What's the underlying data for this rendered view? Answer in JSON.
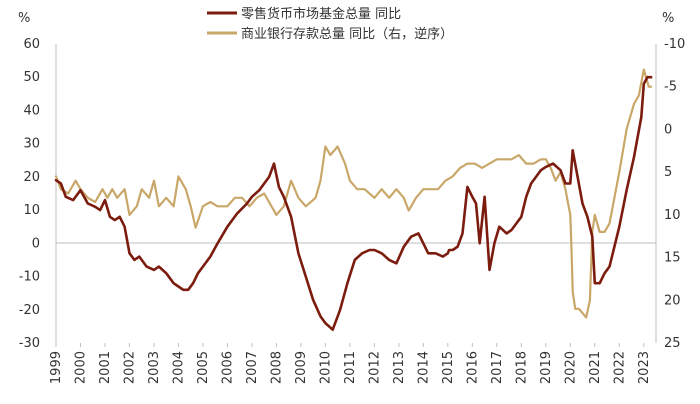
{
  "chart_data": {
    "type": "line",
    "title": "",
    "xlabel": "",
    "left_unit": "%",
    "right_unit": "%",
    "y_left_lim": [
      -30,
      60
    ],
    "y_left_ticks": [
      "60",
      "50",
      "40",
      "30",
      "20",
      "10",
      "0",
      "-10",
      "-20",
      "-30"
    ],
    "y_right_lim": [
      25,
      -10
    ],
    "y_right_reversed": true,
    "y_right_ticks": [
      "-10",
      "-5",
      "0",
      "5",
      "10",
      "15",
      "20",
      "25"
    ],
    "x_lim": [
      1999.0,
      2023.5
    ],
    "x_ticks": [
      "1999",
      "2000",
      "2001",
      "2002",
      "2003",
      "2004",
      "2005",
      "2006",
      "2007",
      "2008",
      "2009",
      "2010",
      "2011",
      "2012",
      "2013",
      "2014",
      "2015",
      "2016",
      "2017",
      "2018",
      "2019",
      "2020",
      "2021",
      "2022",
      "2023"
    ],
    "grid": false,
    "legend_position": "top-center",
    "series": [
      {
        "name": "零售货币市场基金总量 同比",
        "axis": "left",
        "color": "#7b1c0e",
        "x": [
          1999.0,
          1999.2,
          1999.4,
          1999.7,
          2000.0,
          2000.3,
          2000.6,
          2000.8,
          2001.0,
          2001.2,
          2001.4,
          2001.6,
          2001.8,
          2002.0,
          2002.2,
          2002.4,
          2002.7,
          2003.0,
          2003.2,
          2003.5,
          2003.8,
          2004.0,
          2004.2,
          2004.4,
          2004.6,
          2004.8,
          2005.0,
          2005.3,
          2005.6,
          2006.0,
          2006.4,
          2006.8,
          2007.0,
          2007.3,
          2007.5,
          2007.7,
          2007.9,
          2008.1,
          2008.3,
          2008.6,
          2008.9,
          2009.2,
          2009.5,
          2009.8,
          2010.0,
          2010.3,
          2010.6,
          2010.9,
          2011.2,
          2011.5,
          2011.8,
          2012.0,
          2012.3,
          2012.6,
          2012.9,
          2013.2,
          2013.5,
          2013.8,
          2014.0,
          2014.2,
          2014.5,
          2014.8,
          2015.0,
          2015.05,
          2015.2,
          2015.4,
          2015.6,
          2015.8,
          2016.0,
          2016.15,
          2016.3,
          2016.5,
          2016.7,
          2016.9,
          2017.1,
          2017.4,
          2017.6,
          2017.8,
          2018.0,
          2018.2,
          2018.4,
          2018.6,
          2018.8,
          2019.0,
          2019.3,
          2019.6,
          2019.8,
          2020.0,
          2020.1,
          2020.3,
          2020.5,
          2020.7,
          2020.9,
          2021.0,
          2021.2,
          2021.4,
          2021.6,
          2021.8,
          2022.0,
          2022.3,
          2022.6,
          2022.9,
          2023.0,
          2023.15,
          2023.3
        ],
        "values": [
          19,
          18,
          14,
          13,
          16,
          12,
          11,
          10,
          13,
          8,
          7,
          8,
          5,
          -3,
          -5,
          -4,
          -7,
          -8,
          -7,
          -9,
          -12,
          -13,
          -14,
          -14,
          -12,
          -9,
          -7,
          -4,
          0,
          5,
          9,
          12,
          14,
          16,
          18,
          20,
          24,
          17,
          14,
          8,
          -3,
          -10,
          -17,
          -22,
          -24,
          -26,
          -20,
          -12,
          -5,
          -3,
          -2,
          -2,
          -3,
          -5,
          -6,
          -1,
          2,
          3,
          0,
          -3,
          -3,
          -4,
          -3,
          -2,
          -2,
          -1,
          3,
          17,
          14,
          12,
          0,
          14,
          -8,
          0,
          5,
          3,
          4,
          6,
          8,
          14,
          18,
          20,
          22,
          23,
          24,
          22,
          18,
          18,
          28,
          20,
          12,
          8,
          2,
          -12,
          -12,
          -9,
          -7,
          -1,
          5,
          16,
          26,
          38,
          48,
          50,
          50
        ]
      },
      {
        "name": "商业银行存款总量 同比（右，逆序）",
        "axis": "right",
        "color": "#c9a769",
        "x": [
          1999.0,
          1999.2,
          1999.5,
          1999.8,
          2000.0,
          2000.3,
          2000.6,
          2000.9,
          2001.1,
          2001.3,
          2001.5,
          2001.8,
          2002.0,
          2002.3,
          2002.5,
          2002.8,
          2003.0,
          2003.2,
          2003.5,
          2003.8,
          2004.0,
          2004.3,
          2004.5,
          2004.7,
          2005.0,
          2005.3,
          2005.6,
          2006.0,
          2006.3,
          2006.6,
          2006.9,
          2007.2,
          2007.5,
          2007.8,
          2008.0,
          2008.3,
          2008.6,
          2008.9,
          2009.2,
          2009.6,
          2009.8,
          2010.0,
          2010.2,
          2010.5,
          2010.8,
          2011.0,
          2011.3,
          2011.6,
          2012.0,
          2012.3,
          2012.6,
          2012.9,
          2013.2,
          2013.4,
          2013.7,
          2014.0,
          2014.3,
          2014.6,
          2014.9,
          2015.2,
          2015.5,
          2015.8,
          2016.1,
          2016.4,
          2016.7,
          2017.0,
          2017.3,
          2017.6,
          2017.9,
          2018.2,
          2018.5,
          2018.8,
          2019.0,
          2019.2,
          2019.4,
          2019.6,
          2019.8,
          2020.0,
          2020.05,
          2020.1,
          2020.2,
          2020.35,
          2020.5,
          2020.65,
          2020.8,
          2020.9,
          2021.0,
          2021.2,
          2021.4,
          2021.6,
          2021.8,
          2022.0,
          2022.3,
          2022.6,
          2022.8,
          2023.0,
          2023.2,
          2023.3
        ],
        "values": [
          5.5,
          7,
          7.5,
          6,
          7,
          8,
          8.5,
          7,
          8,
          7,
          8,
          7,
          10,
          9,
          7,
          8,
          6,
          9,
          8,
          9,
          5.5,
          7,
          9,
          11.5,
          9,
          8.5,
          9,
          9,
          8,
          8,
          9,
          8,
          7.5,
          9,
          10,
          9,
          6,
          8,
          9,
          8,
          6,
          2,
          3,
          2,
          4,
          6,
          7,
          7,
          8,
          7,
          8,
          7,
          8,
          9.5,
          8,
          7,
          7,
          7,
          6,
          5.5,
          4.5,
          4,
          4,
          4.5,
          4,
          3.5,
          3.5,
          3.5,
          3,
          4,
          4,
          3.5,
          3.5,
          4.5,
          6,
          5,
          7,
          10,
          14,
          19,
          21,
          21,
          21.5,
          22,
          20,
          12,
          10,
          12,
          12,
          11,
          8,
          5,
          0,
          -3,
          -4,
          -7,
          -5,
          -5
        ]
      }
    ]
  }
}
